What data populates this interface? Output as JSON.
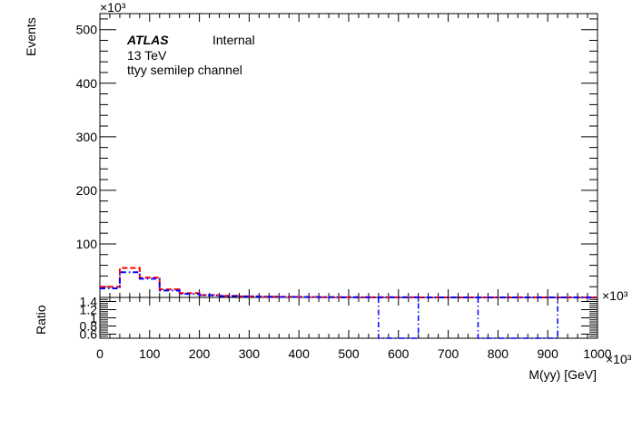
{
  "chart_data": [
    {
      "type": "line",
      "panel": "main",
      "ylabel": "Events",
      "y_multiplier": "×10³",
      "ylim": [
        0,
        530
      ],
      "y_ticks": [
        100,
        200,
        300,
        400,
        500
      ],
      "xlim": [
        0,
        1000
      ],
      "annotations": {
        "atlas": "ATLAS",
        "internal": "Internal",
        "energy": "13 TeV",
        "channel": "ttyy semilep channel"
      },
      "bin_edges": [
        0,
        40,
        80,
        120,
        160,
        200,
        240,
        280,
        320,
        360,
        400,
        440,
        480,
        520,
        560,
        600,
        640,
        680,
        720,
        760,
        800,
        840,
        880,
        920,
        960,
        1000
      ],
      "series": [
        {
          "color": "#ff0000",
          "dash": "dashed",
          "values": [
            20,
            55,
            37,
            15,
            8,
            4.5,
            3,
            2,
            1.5,
            1,
            0.8,
            0.5,
            0.4,
            0.3,
            0.2,
            0.15,
            0.1,
            0.08,
            0.06,
            0.05,
            0.04,
            0.03,
            0.02,
            0.02,
            0.01
          ]
        },
        {
          "color": "#0000ff",
          "dash": "dashdot",
          "values": [
            17,
            47,
            35,
            13,
            6.5,
            4,
            2.5,
            1.8,
            1.2,
            0.9,
            0.6,
            0.4,
            0.3,
            0.25,
            0.18,
            0.12,
            0.09,
            0.07,
            0.05,
            0.04,
            0.03,
            0.02,
            0.02,
            0.01,
            0.01
          ]
        }
      ]
    },
    {
      "type": "line",
      "panel": "ratio",
      "ylabel": "Ratio",
      "xlabel": "M(yy) [GeV]",
      "x_multiplier": "×10³",
      "ylim": [
        0.5,
        1.5
      ],
      "y_ticks": [
        0.6,
        0.8,
        1.0,
        1.2,
        1.4
      ],
      "y_tick_labels": [
        "0.6",
        "0.8",
        "1",
        "1.2",
        "1.4"
      ],
      "xlim": [
        0,
        1000
      ],
      "x_ticks": [
        0,
        100,
        200,
        300,
        400,
        500,
        600,
        700,
        800,
        900,
        1000
      ],
      "x_tick_labels": [
        "0",
        "100",
        "200",
        "300",
        "400",
        "500",
        "600",
        "700",
        "800",
        "900",
        "1000"
      ],
      "series": [
        {
          "color": "#0000ff",
          "dash": "dashdot",
          "segments": [
            {
              "x": [
                560,
                640
              ],
              "y": 0.5
            },
            {
              "x": [
                760,
                920
              ],
              "y": 0.5
            }
          ]
        }
      ]
    }
  ]
}
